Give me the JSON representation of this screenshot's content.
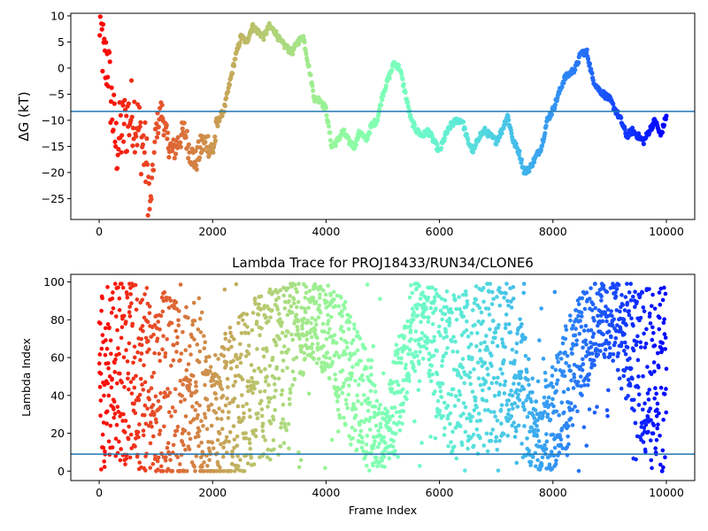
{
  "chart_data": [
    {
      "type": "scatter",
      "title": "",
      "xlabel": "",
      "ylabel": "ΔG (kT)",
      "xlim": [
        -500,
        10500
      ],
      "ylim": [
        -29,
        10.5
      ],
      "xticks": [
        0,
        2000,
        4000,
        6000,
        8000,
        10000
      ],
      "xtick_labels": [
        "0",
        "2000",
        "4000",
        "6000",
        "8000",
        "10000"
      ],
      "yticks": [
        -25,
        -20,
        -15,
        -10,
        -5,
        0,
        5,
        10
      ],
      "ytick_labels": [
        "−25",
        "−20",
        "−15",
        "−10",
        "−5",
        "0",
        "5",
        "10"
      ],
      "hline": -8.3,
      "hline_color": "#1f77b4",
      "colormap": "rainbow (frame 0 = red, frame 10000 = violet)",
      "grid": false,
      "series": [
        {
          "x": [
            0,
            50,
            100,
            150,
            200,
            300,
            400,
            500,
            600,
            700,
            800,
            850,
            900,
            1000,
            1100,
            1200,
            1300,
            1400,
            1500,
            1600,
            1700,
            1800,
            1900,
            2000,
            2100,
            2200,
            2300,
            2400,
            2500,
            2600,
            2700,
            2800,
            2900,
            3000,
            3100,
            3200,
            3300,
            3400,
            3500,
            3600,
            3700,
            3800,
            3900,
            4000,
            4100,
            4200,
            4300,
            4400,
            4500,
            4600,
            4700,
            4800,
            4900,
            5000,
            5100,
            5200,
            5300,
            5400,
            5500,
            5600,
            5700,
            5800,
            5900,
            6000,
            6100,
            6200,
            6300,
            6400,
            6500,
            6600,
            6700,
            6800,
            6900,
            7000,
            7100,
            7200,
            7300,
            7400,
            7500,
            7600,
            7700,
            7800,
            7900,
            8000,
            8100,
            8200,
            8300,
            8400,
            8500,
            8600,
            8700,
            8800,
            8900,
            9000,
            9100,
            9200,
            9300,
            9400,
            9500,
            9600,
            9700,
            9800,
            9900,
            10000
          ],
          "y": [
            10,
            5,
            0,
            2,
            -5,
            -15,
            -12,
            -10,
            -8,
            -12,
            -16,
            -20,
            -27,
            -12,
            -8,
            -14,
            -16,
            -14,
            -12,
            -16,
            -18,
            -15,
            -14,
            -16,
            -10,
            -8,
            -3,
            2,
            6,
            5,
            8,
            7,
            6,
            8,
            7,
            5,
            4,
            3,
            5,
            6,
            0,
            -6,
            -6,
            -8,
            -15,
            -14,
            -12,
            -14,
            -15,
            -12,
            -14,
            -11,
            -10,
            -5,
            -2,
            1,
            0,
            -5,
            -10,
            -12,
            -13,
            -12,
            -14,
            -16,
            -13,
            -11,
            -10,
            -10,
            -14,
            -16,
            -13,
            -12,
            -13,
            -14,
            -12,
            -9,
            -14,
            -16,
            -20,
            -19,
            -17,
            -15,
            -10,
            -8,
            -5,
            -2,
            -1,
            0,
            3,
            3,
            -2,
            -4,
            -5,
            -6,
            -8,
            -10,
            -13,
            -12,
            -13,
            -14,
            -12,
            -10,
            -13,
            -9
          ]
        }
      ]
    },
    {
      "type": "scatter",
      "title": "Lambda Trace for PROJ18433/RUN34/CLONE6",
      "xlabel": "Frame Index",
      "ylabel": "Lambda Index",
      "xlim": [
        -500,
        10500
      ],
      "ylim": [
        -5,
        104
      ],
      "xticks": [
        0,
        2000,
        4000,
        6000,
        8000,
        10000
      ],
      "xtick_labels": [
        "0",
        "2000",
        "4000",
        "6000",
        "8000",
        "10000"
      ],
      "yticks": [
        0,
        20,
        40,
        60,
        80,
        100
      ],
      "ytick_labels": [
        "0",
        "20",
        "40",
        "60",
        "80",
        "100"
      ],
      "hline": 9,
      "hline_color": "#1f77b4",
      "colormap": "rainbow (frame 0 = red, frame 10000 = violet)",
      "grid": false,
      "series": [
        {
          "x": [
            0,
            250,
            500,
            750,
            1000,
            1250,
            1500,
            1750,
            2000,
            2250,
            2500,
            2750,
            3000,
            3250,
            3500,
            3750,
            4000,
            4250,
            4500,
            4750,
            5000,
            5250,
            5500,
            5750,
            6000,
            6250,
            6500,
            6750,
            7000,
            7250,
            7500,
            7750,
            8000,
            8250,
            8500,
            8750,
            9000,
            9250,
            9500,
            9750,
            10000
          ],
          "y": [
            50,
            55,
            55,
            50,
            45,
            45,
            40,
            45,
            25,
            30,
            40,
            45,
            50,
            55,
            75,
            80,
            75,
            60,
            45,
            30,
            15,
            40,
            75,
            80,
            60,
            50,
            55,
            55,
            55,
            60,
            40,
            15,
            30,
            45,
            65,
            80,
            80,
            70,
            60,
            50,
            45
          ],
          "spread": [
            50,
            50,
            50,
            50,
            50,
            50,
            48,
            48,
            35,
            40,
            45,
            48,
            48,
            45,
            25,
            20,
            25,
            35,
            35,
            30,
            15,
            30,
            25,
            20,
            35,
            45,
            45,
            45,
            45,
            40,
            35,
            15,
            30,
            35,
            30,
            20,
            20,
            30,
            40,
            50,
            50
          ]
        }
      ]
    }
  ]
}
